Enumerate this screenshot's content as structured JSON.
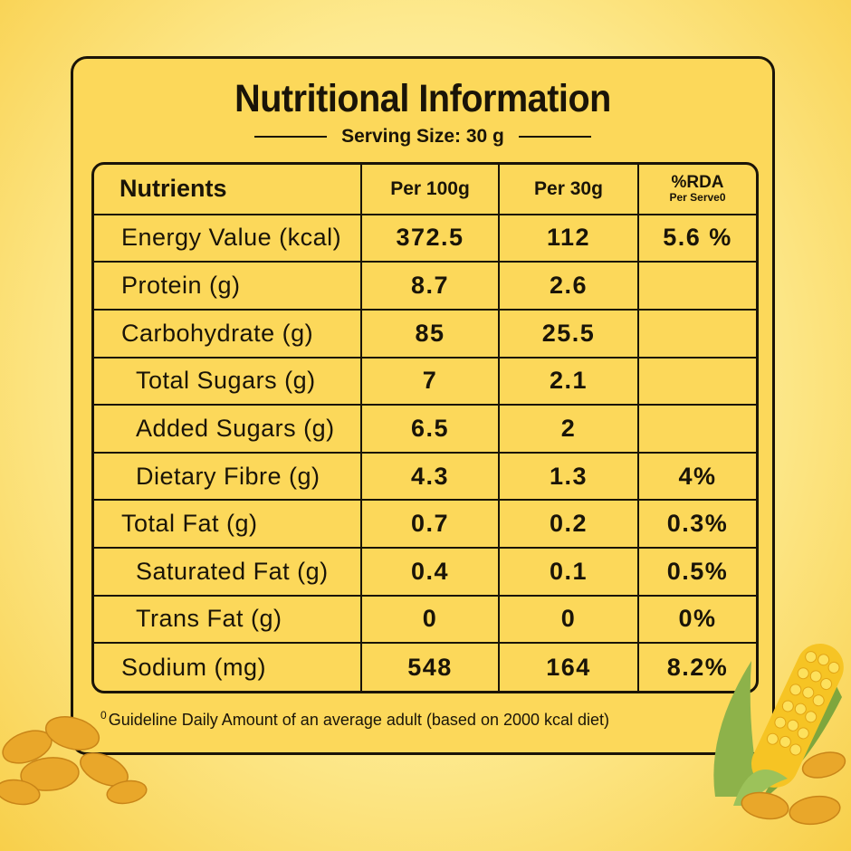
{
  "title": "Nutritional Information",
  "serving_size": "Serving Size: 30 g",
  "headers": {
    "nutrients": "Nutrients",
    "per100": "Per 100g",
    "per30": "Per 30g",
    "rda": "%RDA",
    "rda_sub": "Per Serve0"
  },
  "rows": [
    {
      "name": "Energy Value (kcal)",
      "per100": "372.5",
      "per30": "112",
      "rda": "5.6 %"
    },
    {
      "name": "Protein (g)",
      "per100": "8.7",
      "per30": "2.6",
      "rda": ""
    },
    {
      "name": "Carbohydrate (g)",
      "per100": "85",
      "per30": "25.5",
      "rda": ""
    },
    {
      "name": "Total Sugars (g)",
      "per100": "7",
      "per30": "2.1",
      "rda": ""
    },
    {
      "name": "Added Sugars (g)",
      "per100": "6.5",
      "per30": "2",
      "rda": ""
    },
    {
      "name": "Dietary Fibre (g)",
      "per100": "4.3",
      "per30": "1.3",
      "rda": "4%"
    },
    {
      "name": "Total Fat (g)",
      "per100": "0.7",
      "per30": "0.2",
      "rda": "0.3%"
    },
    {
      "name": "Saturated Fat (g)",
      "per100": "0.4",
      "per30": "0.1",
      "rda": "0.5%"
    },
    {
      "name": "Trans Fat (g)",
      "per100": "0",
      "per30": "0",
      "rda": "0%"
    },
    {
      "name": "Sodium (mg)",
      "per100": "548",
      "per30": "164",
      "rda": "8.2%"
    }
  ],
  "footnote_marker": "0",
  "footnote": "Guideline Daily Amount of an average adult (based on 2000 kcal diet)",
  "colors": {
    "panel": "#fcd85a",
    "ink": "#1a1408",
    "background": "#fde98e"
  }
}
